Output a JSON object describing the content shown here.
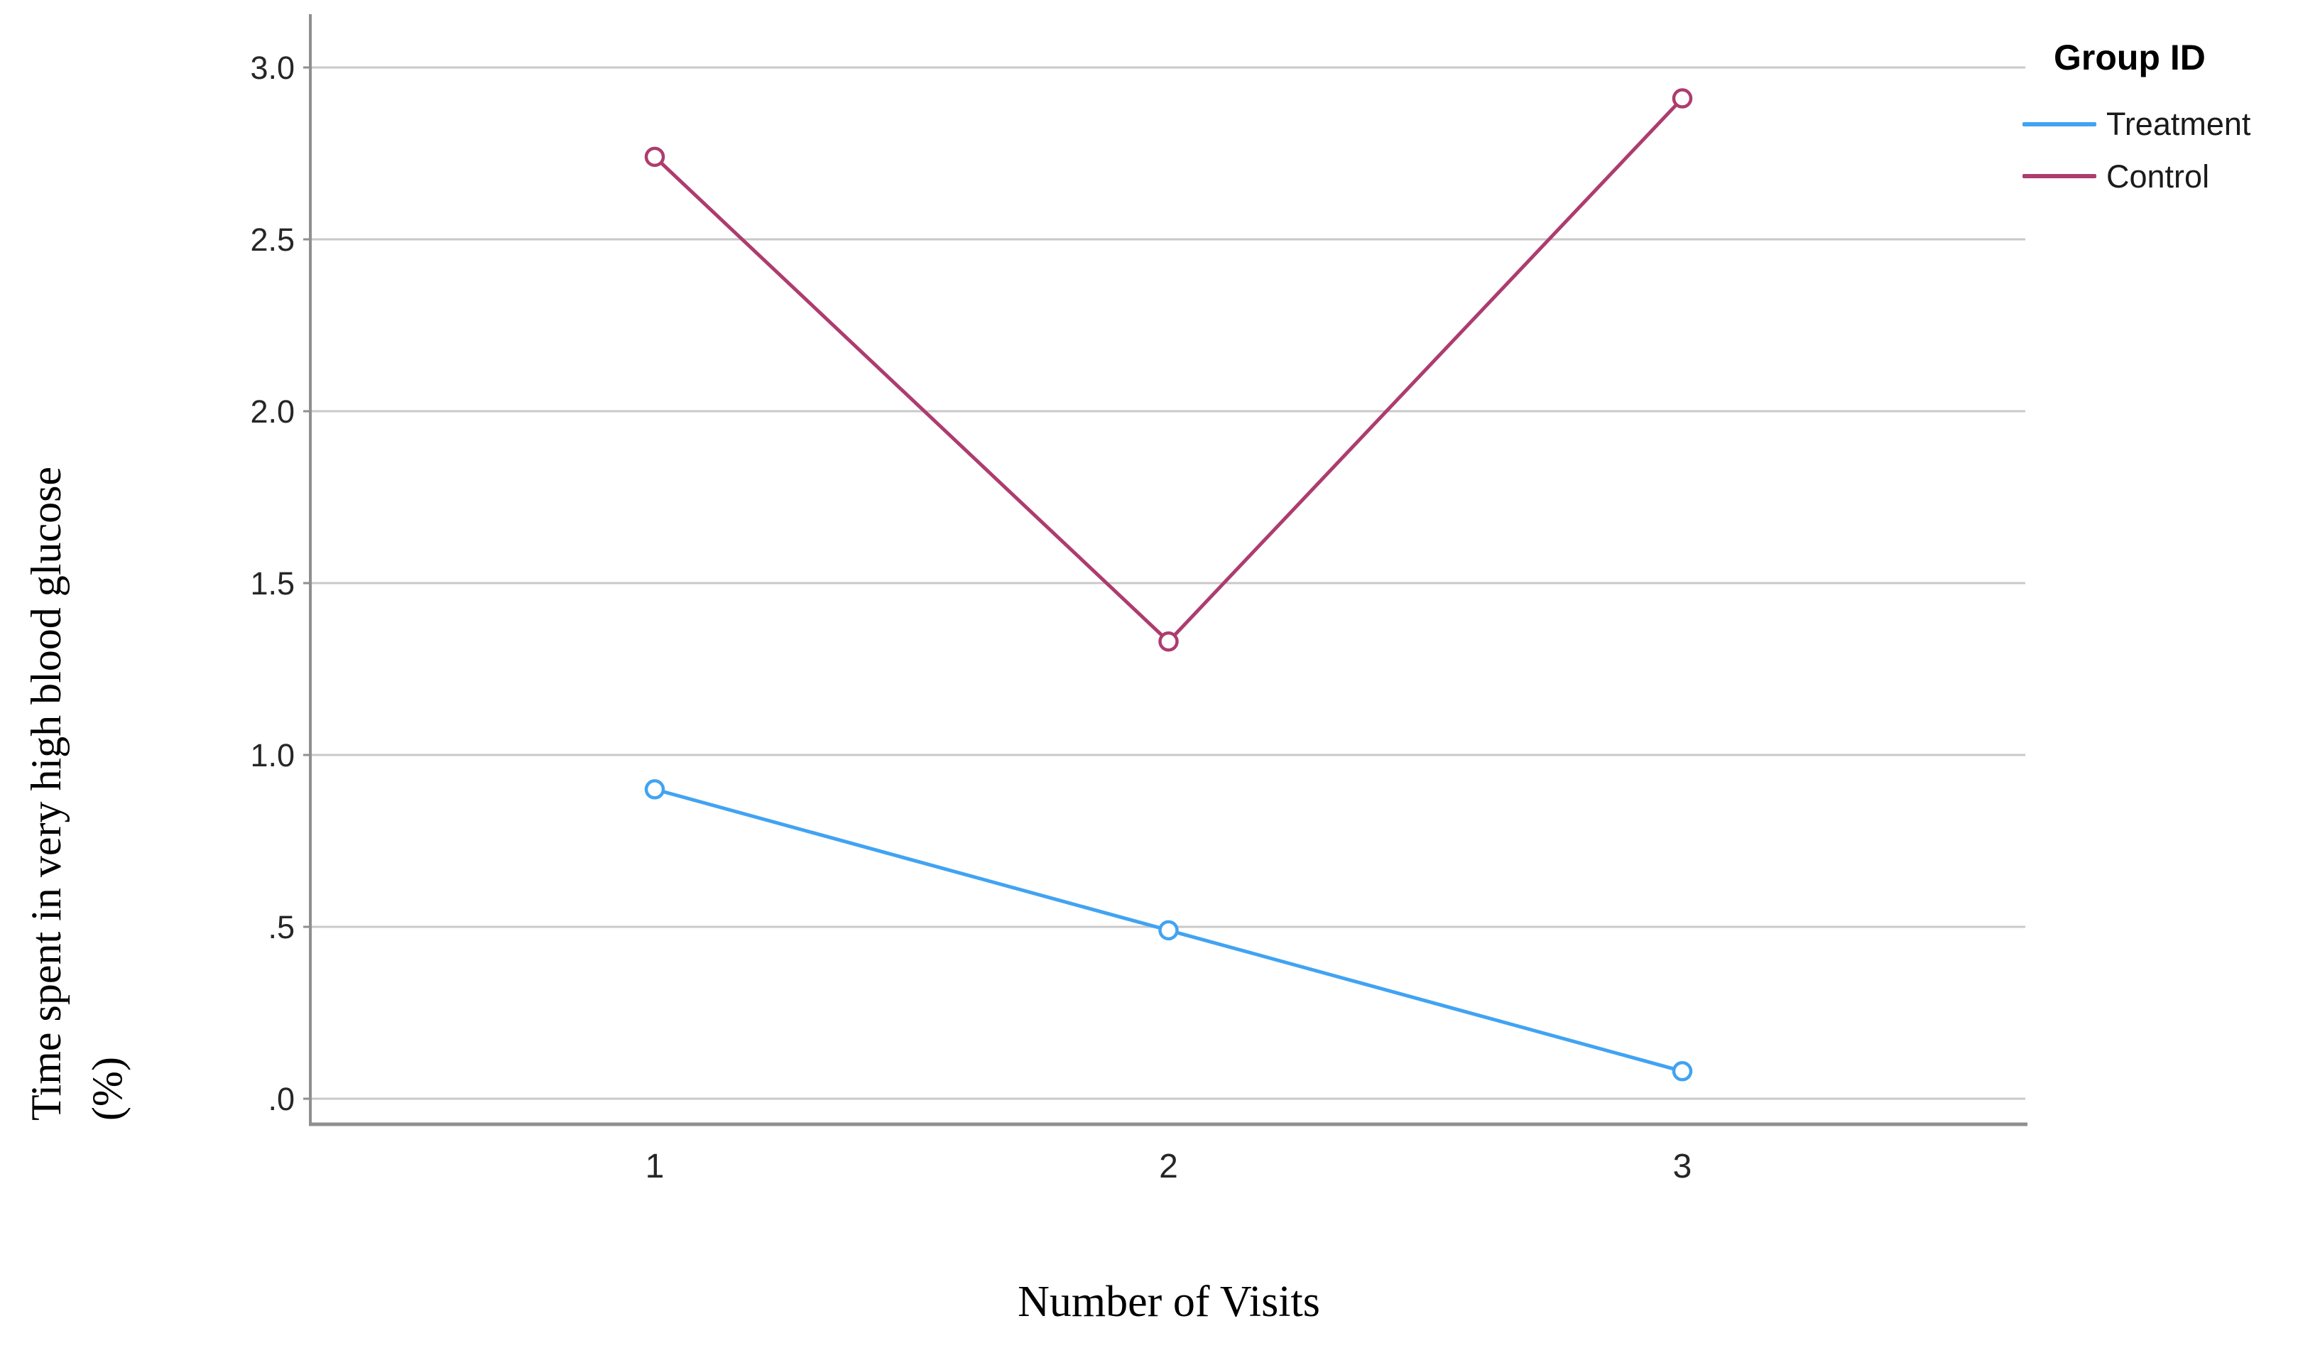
{
  "chart_data": {
    "type": "line",
    "title": "",
    "xlabel": "Number of Visits",
    "ylabel": "Time spent in very high blood glucose (%)",
    "ylabel_line1": "Time spent in very high blood glucose",
    "ylabel_line2": "(%)",
    "categories": [
      "1",
      "2",
      "3"
    ],
    "x": [
      1,
      2,
      3
    ],
    "series": [
      {
        "name": "Treatment",
        "color": "#41a3f2",
        "values": [
          0.9,
          0.49,
          0.08
        ]
      },
      {
        "name": "Control",
        "color": "#ad3c6f",
        "values": [
          2.74,
          1.33,
          2.91
        ]
      }
    ],
    "ytick_labels": [
      ".0",
      ".5",
      "1.0",
      "1.5",
      "2.0",
      "2.5",
      "3.0"
    ],
    "ytick_values": [
      0,
      0.5,
      1.0,
      1.5,
      2.0,
      2.5,
      3.0
    ],
    "ylim": [
      0,
      3.0
    ],
    "grid": "horizontal",
    "marker": "open-circle",
    "legend_position": "top-right"
  },
  "legend": {
    "title": "Group ID",
    "items": [
      {
        "label": "Treatment",
        "color": "#41a3f2"
      },
      {
        "label": "Control",
        "color": "#ad3c6f"
      }
    ]
  },
  "colors": {
    "background": "#ffffff",
    "grid": "#c9c9c9",
    "axis": "#8f8f8f",
    "tick_text": "#262626"
  }
}
